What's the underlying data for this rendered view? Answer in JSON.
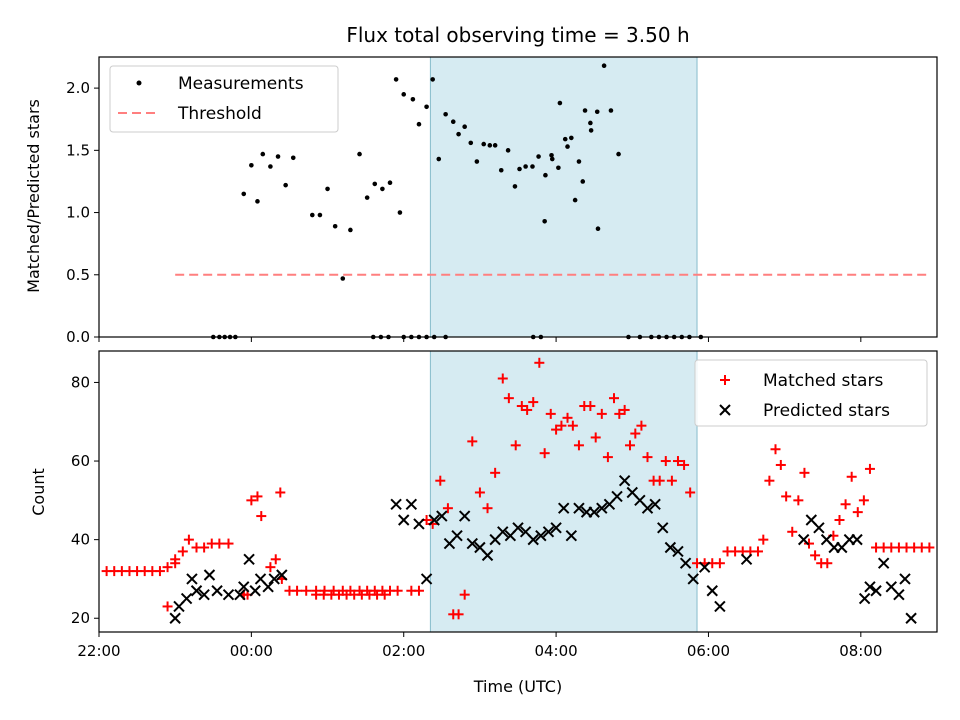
{
  "chart_data": [
    {
      "type": "scatter",
      "title": "Flux total observing time = 3.50 h",
      "xlabel": "",
      "ylabel": "Matched/Predicted stars",
      "xlim_hours": [
        -2.0,
        9.0
      ],
      "ylim": [
        0,
        2.25
      ],
      "yticks": [
        0.0,
        0.5,
        1.0,
        1.5,
        2.0
      ],
      "ytick_labels": [
        "0.0",
        "0.5",
        "1.0",
        "1.5",
        "2.0"
      ],
      "shaded_interval": [
        2.35,
        5.85
      ],
      "legend": {
        "position": "top-left",
        "entries": [
          "Measurements",
          "Threshold"
        ]
      },
      "threshold": {
        "name": "Threshold",
        "value": 0.5,
        "x_range": [
          -1.0,
          8.9
        ],
        "color": "#ff7f7f"
      },
      "series": [
        {
          "name": "Measurements",
          "color": "#000000",
          "points": [
            [
              -0.5,
              0
            ],
            [
              -0.42,
              0
            ],
            [
              -0.35,
              0
            ],
            [
              -0.28,
              0
            ],
            [
              -0.21,
              0
            ],
            [
              -0.1,
              1.15
            ],
            [
              0.0,
              1.38
            ],
            [
              0.08,
              1.09
            ],
            [
              0.15,
              1.47
            ],
            [
              0.25,
              1.37
            ],
            [
              0.35,
              1.45
            ],
            [
              0.45,
              1.22
            ],
            [
              0.55,
              1.44
            ],
            [
              1.6,
              0
            ],
            [
              1.7,
              0
            ],
            [
              1.8,
              0
            ],
            [
              1.95,
              1.0
            ],
            [
              2.0,
              0
            ],
            [
              2.1,
              0
            ],
            [
              2.2,
              0
            ],
            [
              2.3,
              0
            ],
            [
              2.4,
              0
            ],
            [
              2.55,
              0
            ],
            [
              3.7,
              0
            ],
            [
              3.8,
              0
            ],
            [
              3.85,
              0.93
            ],
            [
              3.95,
              1.43
            ],
            [
              4.05,
              1.88
            ],
            [
              4.15,
              1.53
            ],
            [
              4.25,
              1.1
            ],
            [
              4.35,
              1.25
            ],
            [
              4.45,
              1.72
            ],
            [
              4.55,
              0.87
            ],
            [
              4.95,
              0
            ],
            [
              5.1,
              0
            ],
            [
              5.25,
              0
            ],
            [
              5.35,
              0
            ],
            [
              5.45,
              0
            ],
            [
              5.55,
              0
            ],
            [
              5.65,
              0
            ],
            [
              5.75,
              0
            ],
            [
              5.9,
              0
            ],
            [
              0.8,
              0.98
            ],
            [
              0.9,
              0.98
            ],
            [
              1.0,
              1.19
            ],
            [
              1.1,
              0.89
            ],
            [
              1.2,
              0.47
            ],
            [
              1.3,
              0.86
            ],
            [
              1.42,
              1.47
            ],
            [
              1.52,
              1.12
            ],
            [
              1.62,
              1.23
            ],
            [
              1.72,
              1.19
            ],
            [
              1.82,
              1.24
            ],
            [
              1.9,
              2.07
            ],
            [
              2.0,
              1.95
            ],
            [
              2.12,
              1.91
            ],
            [
              2.2,
              1.71
            ],
            [
              2.3,
              1.85
            ],
            [
              2.38,
              2.07
            ],
            [
              2.46,
              1.43
            ],
            [
              2.55,
              1.79
            ],
            [
              2.65,
              1.73
            ],
            [
              2.72,
              1.63
            ],
            [
              2.8,
              1.69
            ],
            [
              2.88,
              1.56
            ],
            [
              2.96,
              1.41
            ],
            [
              3.05,
              1.55
            ],
            [
              3.13,
              1.54
            ],
            [
              3.2,
              1.54
            ],
            [
              3.28,
              1.34
            ],
            [
              3.37,
              1.5
            ],
            [
              3.46,
              1.21
            ],
            [
              3.52,
              1.35
            ],
            [
              3.6,
              1.37
            ],
            [
              3.69,
              1.37
            ],
            [
              3.77,
              1.45
            ],
            [
              3.86,
              1.3
            ],
            [
              3.94,
              1.46
            ],
            [
              4.03,
              1.36
            ],
            [
              4.12,
              1.59
            ],
            [
              4.2,
              1.6
            ],
            [
              4.3,
              1.41
            ],
            [
              4.38,
              1.82
            ],
            [
              4.46,
              1.66
            ],
            [
              4.54,
              1.81
            ],
            [
              4.63,
              2.18
            ],
            [
              4.72,
              1.82
            ],
            [
              4.82,
              1.47
            ]
          ]
        }
      ],
      "note_times_offset_hours_from": "00:00 UTC"
    },
    {
      "type": "scatter",
      "title": "",
      "xlabel": "Time (UTC)",
      "ylabel": "Count",
      "xlim_hours": [
        -2.0,
        9.0
      ],
      "ylim": [
        16.5,
        88
      ],
      "yticks": [
        20,
        40,
        60,
        80
      ],
      "ytick_labels": [
        "20",
        "40",
        "60",
        "80"
      ],
      "xticks_hours": [
        -2,
        0,
        2,
        4,
        6,
        8
      ],
      "xtick_labels": [
        "22:00",
        "00:00",
        "02:00",
        "04:00",
        "06:00",
        "08:00"
      ],
      "shaded_interval": [
        2.35,
        5.85
      ],
      "legend": {
        "position": "top-right",
        "entries": [
          "Matched stars",
          "Predicted stars"
        ]
      },
      "series": [
        {
          "name": "Matched stars",
          "color": "#ff0000",
          "marker": "plus",
          "points": []
        },
        {
          "name": "Predicted stars",
          "color": "#000000",
          "marker": "x",
          "points": []
        }
      ]
    }
  ]
}
